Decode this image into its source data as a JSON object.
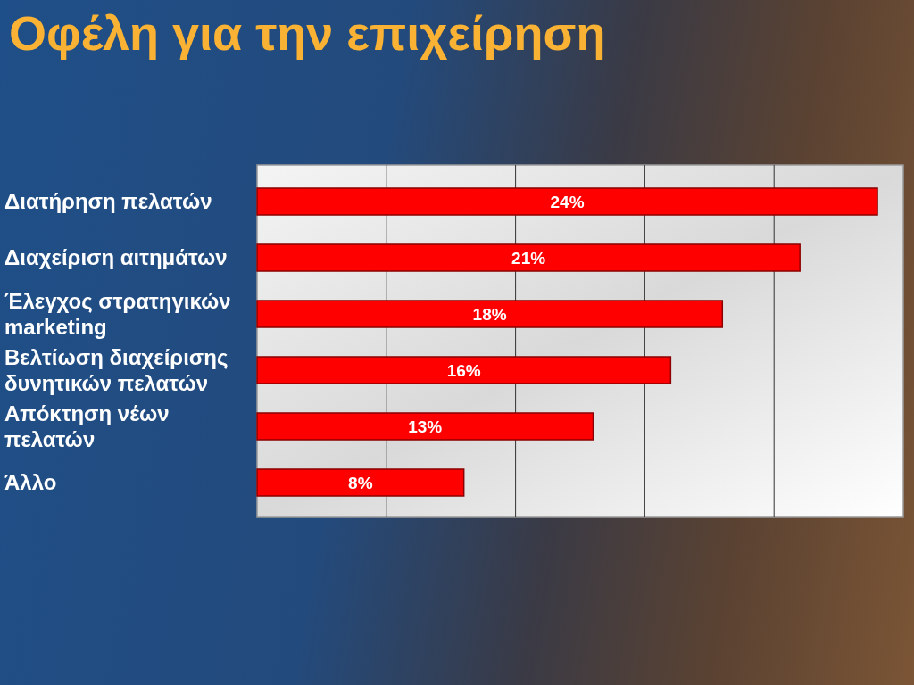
{
  "chart_data": {
    "type": "bar",
    "orientation": "horizontal",
    "title": "Οφέλη για την επιχείρηση",
    "categories": [
      "Διατήρηση πελατών",
      "Διαχείριση αιτημάτων",
      "Έλεγχος στρατηγικών marketing",
      "Βελτίωση διαχείρισης δυνητικών πελατών",
      "Απόκτηση νέων πελατών",
      "Άλλο"
    ],
    "values": [
      24,
      21,
      18,
      16,
      13,
      8
    ],
    "value_labels": [
      "24%",
      "21%",
      "18%",
      "16%",
      "13%",
      "8%"
    ],
    "color": "#ff0000",
    "xlim": [
      0,
      25
    ],
    "xticks": [
      {
        "value": 5,
        "label": null
      },
      {
        "value": 10,
        "label": null
      },
      {
        "value": 15,
        "label": null
      },
      {
        "value": 20,
        "label": null
      }
    ],
    "grid": "x",
    "tick_labels": "y"
  }
}
